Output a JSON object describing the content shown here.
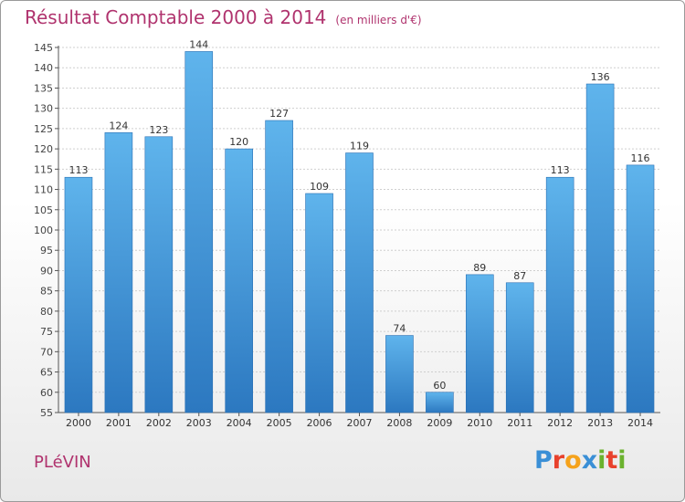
{
  "title": "Résultat Comptable 2000 à 2014",
  "subtitle": "(en milliers d'€)",
  "commune": "PLéVIN",
  "logo": {
    "text": "Proxiti",
    "colors": [
      "#3a8fd6",
      "#e8412c",
      "#f5a21b",
      "#3a8fd6",
      "#6bb22e",
      "#e8412c",
      "#6bb22e"
    ]
  },
  "colors": {
    "title": "#b0336e",
    "bar": "#3a8fd6",
    "bar_light": "#5bb0ea"
  },
  "chart_data": {
    "type": "bar",
    "title": "Résultat Comptable 2000 à 2014",
    "ylabel": "",
    "xlabel": "",
    "categories": [
      "2000",
      "2001",
      "2002",
      "2003",
      "2004",
      "2005",
      "2006",
      "2007",
      "2008",
      "2009",
      "2010",
      "2011",
      "2012",
      "2013",
      "2014"
    ],
    "values": [
      113,
      124,
      123,
      144,
      120,
      127,
      109,
      119,
      74,
      60,
      89,
      87,
      113,
      136,
      116
    ],
    "ylim": [
      55,
      145
    ],
    "yticks": [
      55,
      60,
      65,
      70,
      75,
      80,
      85,
      90,
      95,
      100,
      105,
      110,
      115,
      120,
      125,
      130,
      135,
      140,
      145
    ],
    "grid": true
  }
}
